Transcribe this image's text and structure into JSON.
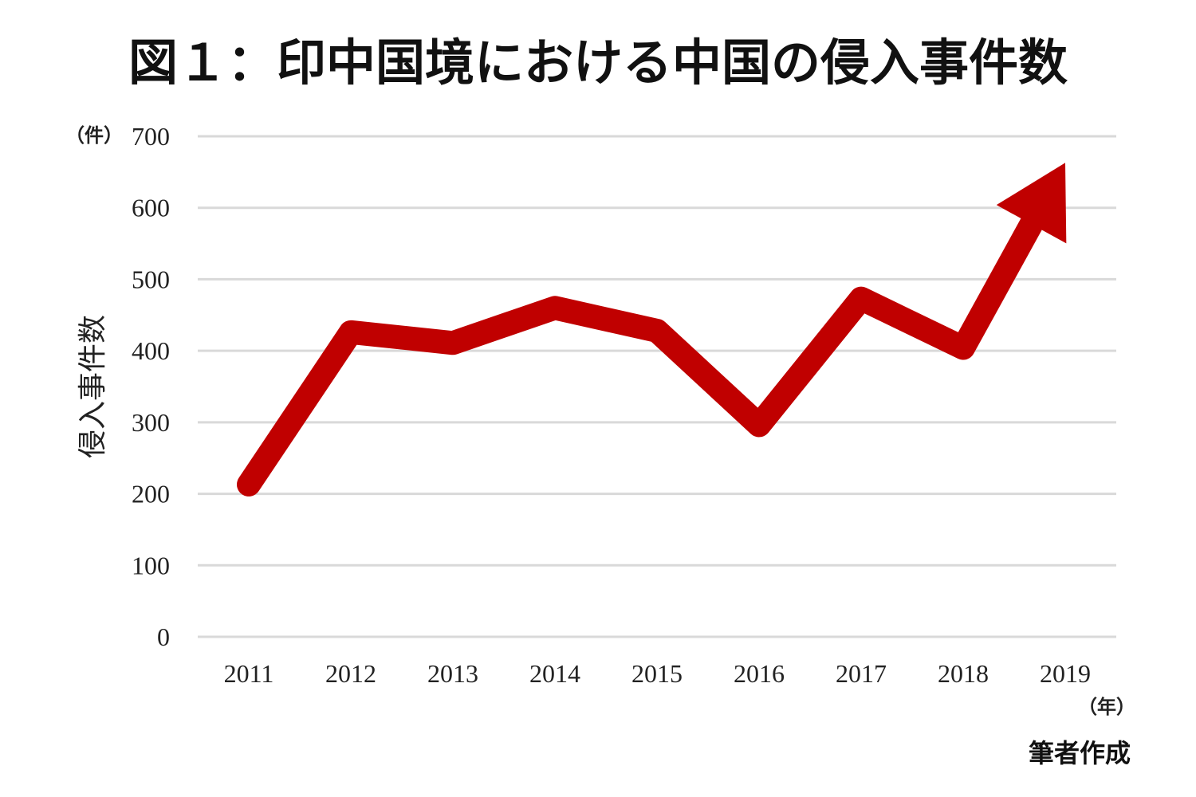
{
  "chart_data": {
    "type": "line",
    "title": "図１：印中国境における中国の侵入事件数",
    "ylabel": "侵入事件数",
    "y_unit": "（件）",
    "x_unit": "（年）",
    "credit": "筆者作成",
    "categories": [
      "2011",
      "2012",
      "2013",
      "2014",
      "2015",
      "2016",
      "2017",
      "2018",
      "2019"
    ],
    "series": [
      {
        "values": [
          213,
          426,
          411,
          460,
          428,
          296,
          473,
          404,
          663
        ]
      }
    ],
    "ylim": [
      0,
      700
    ],
    "yticks": [
      0,
      100,
      200,
      300,
      400,
      500,
      600,
      700
    ],
    "grid": true,
    "legend": "none",
    "colors": {
      "line": "#c00000",
      "grid": "#d9d9d9"
    }
  }
}
